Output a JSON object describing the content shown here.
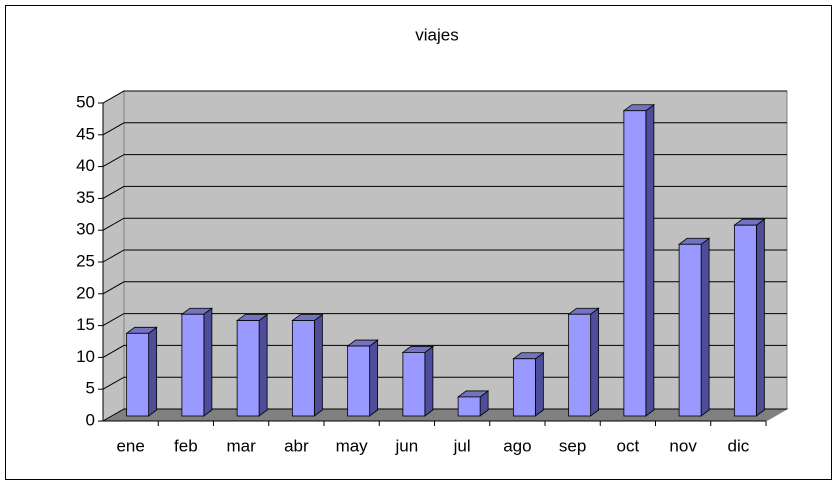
{
  "chart_data": {
    "type": "bar3d",
    "title": "viajes",
    "categories": [
      "ene",
      "feb",
      "mar",
      "abr",
      "may",
      "jun",
      "jul",
      "ago",
      "sep",
      "oct",
      "nov",
      "dic"
    ],
    "values": [
      13,
      16,
      15,
      15,
      11,
      10,
      3,
      9,
      16,
      48,
      27,
      30
    ],
    "color": "#9999ff",
    "ylim": [
      0,
      50
    ],
    "yticks": [
      0,
      5,
      10,
      15,
      20,
      25,
      30,
      35,
      40,
      45,
      50
    ],
    "grid": true
  }
}
